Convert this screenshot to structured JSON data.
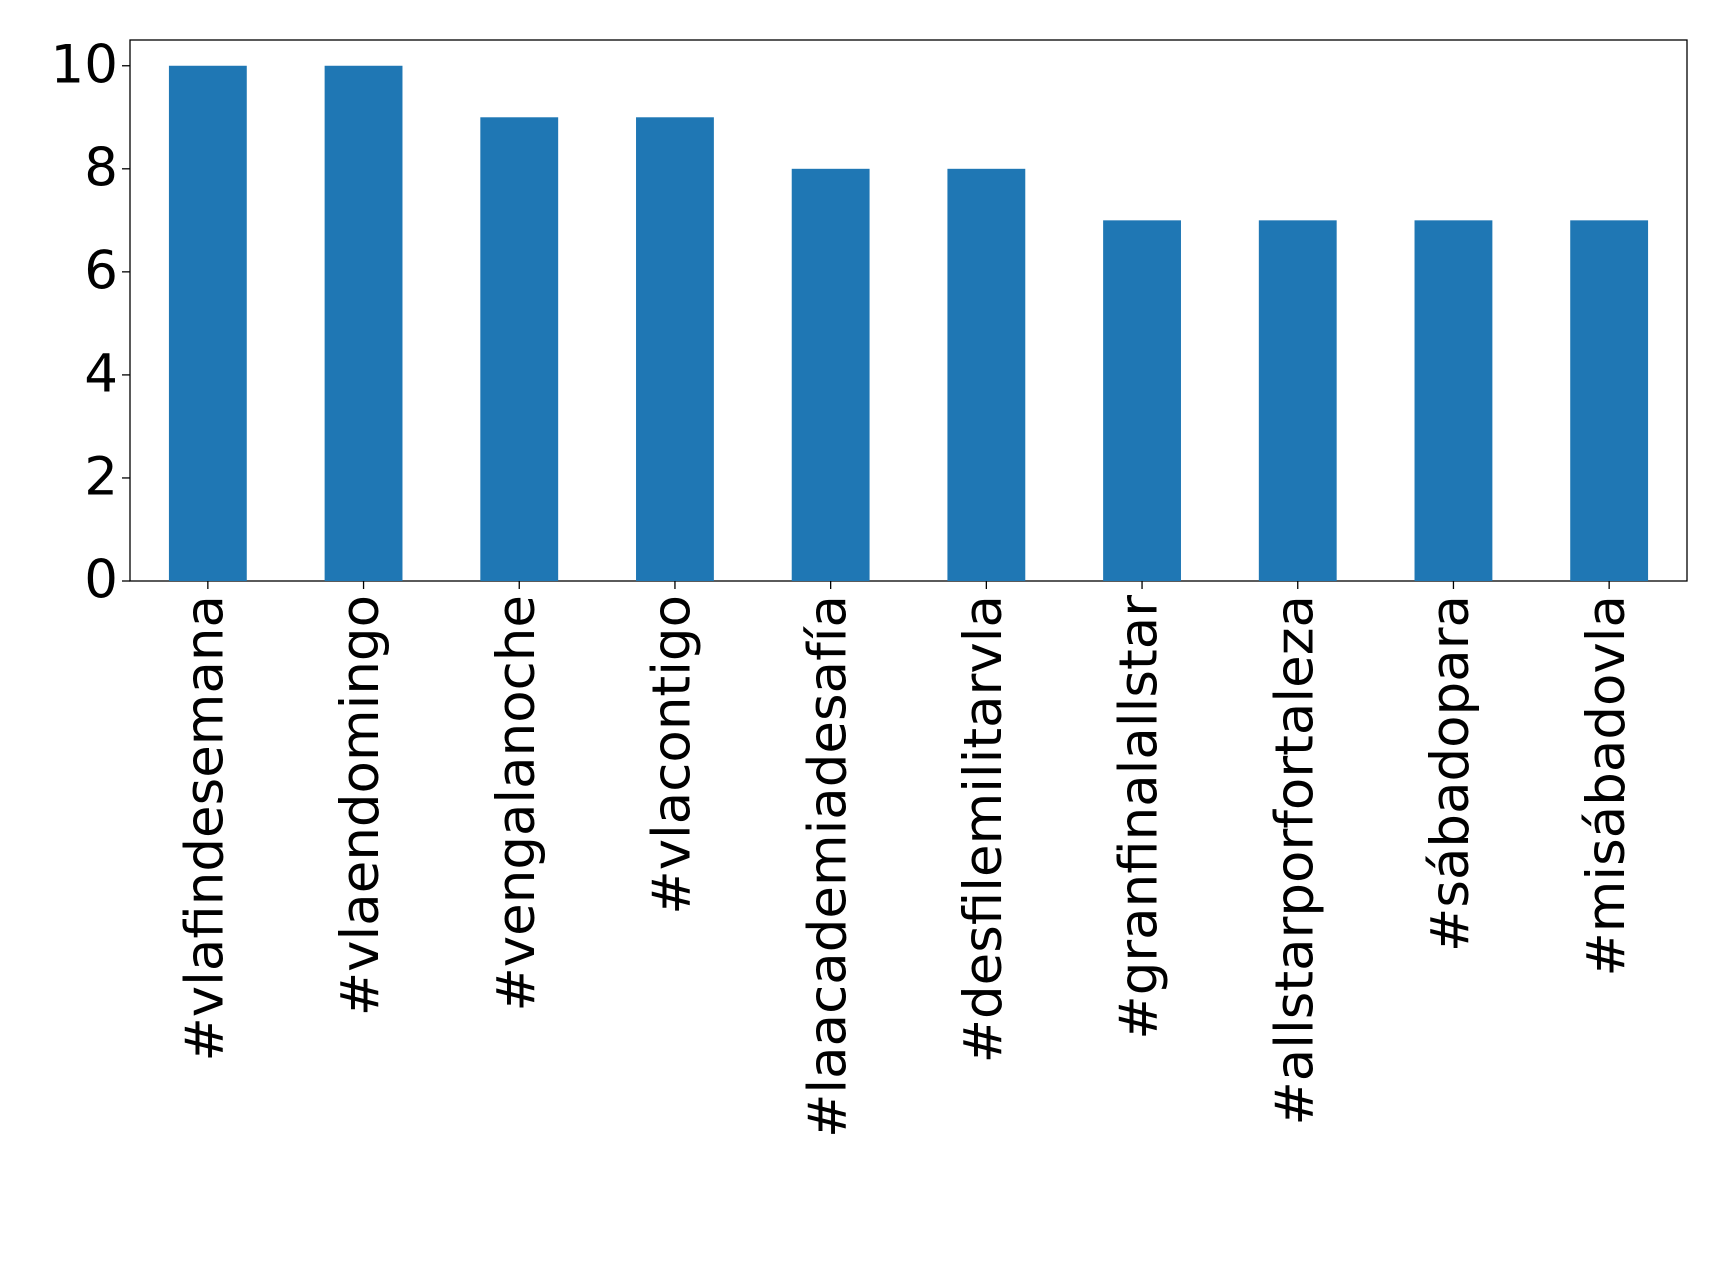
{
  "chart_data": {
    "type": "bar",
    "categories": [
      "#vlafindesemana",
      "#vlaendomingo",
      "#vengalanoche",
      "#vlacontigo",
      "#laacademiadesafía",
      "#desfilemilitarvla",
      "#granfinalallstar",
      "#allstarporfortaleza",
      "#sábadopara",
      "#misábadovla"
    ],
    "values": [
      10,
      10,
      9,
      9,
      8,
      8,
      7,
      7,
      7,
      7
    ],
    "color": "#1f77b4",
    "ylim": [
      0,
      10.5
    ],
    "yticks": [
      0,
      2,
      4,
      6,
      8,
      10
    ],
    "grid": false
  }
}
